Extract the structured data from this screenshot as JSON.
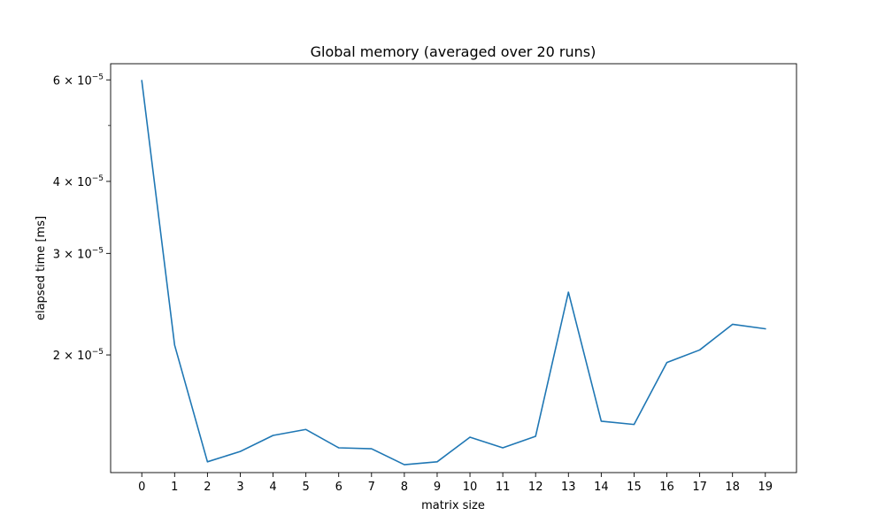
{
  "chart_data": {
    "type": "line",
    "title": "Global memory (averaged over 20 runs)",
    "xlabel": "matrix size",
    "ylabel": "elapsed time [ms]",
    "y_scale": "log",
    "color": "#1f77b4",
    "x": [
      0,
      1,
      2,
      3,
      4,
      5,
      6,
      7,
      8,
      9,
      10,
      11,
      12,
      13,
      14,
      15,
      16,
      17,
      18,
      19
    ],
    "y": [
      5.98e-05,
      2.08e-05,
      1.305e-05,
      1.36e-05,
      1.45e-05,
      1.485e-05,
      1.38e-05,
      1.375e-05,
      1.29e-05,
      1.305e-05,
      1.44e-05,
      1.38e-05,
      1.445e-05,
      2.57e-05,
      1.535e-05,
      1.515e-05,
      1.94e-05,
      2.04e-05,
      2.26e-05,
      2.22e-05
    ],
    "xlim": [
      -0.95,
      19.95
    ],
    "ylim": [
      1.25e-05,
      6.4e-05
    ],
    "x_ticks": [
      "0",
      "1",
      "2",
      "3",
      "4",
      "5",
      "6",
      "7",
      "8",
      "9",
      "10",
      "11",
      "12",
      "13",
      "14",
      "15",
      "16",
      "17",
      "18",
      "19"
    ],
    "y_major_ticks": [
      {
        "value": 2e-05,
        "mantissa": "2",
        "exponent": "−5"
      },
      {
        "value": 3e-05,
        "mantissa": "3",
        "exponent": "−5"
      },
      {
        "value": 4e-05,
        "mantissa": "4",
        "exponent": "−5"
      },
      {
        "value": 6e-05,
        "mantissa": "6",
        "exponent": "−5"
      }
    ],
    "y_minor_ticks": [
      5e-05
    ],
    "grid": false,
    "legend": "none"
  }
}
